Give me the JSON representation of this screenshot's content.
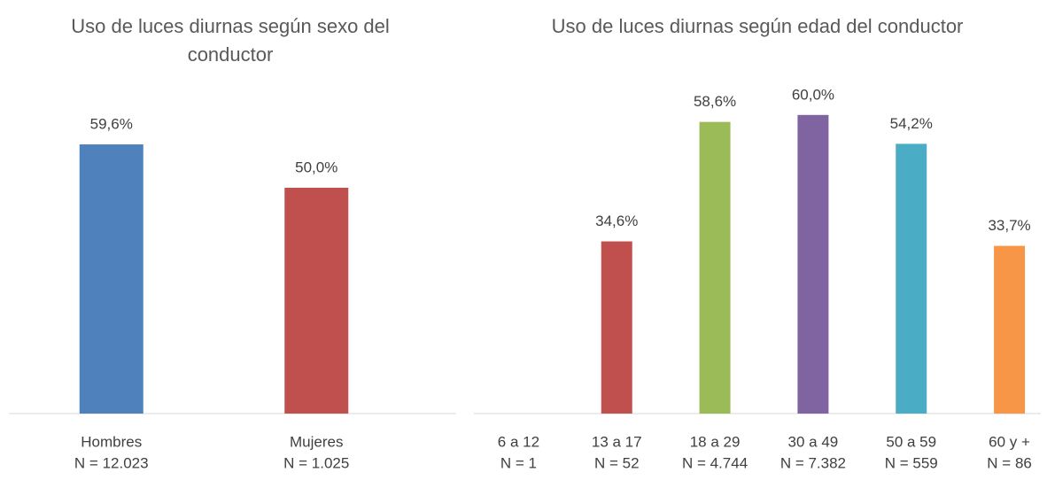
{
  "chart_data": [
    {
      "type": "bar",
      "title": "Uso de luces diurnas según sexo del conductor",
      "categories": [
        "Hombres",
        "Mujeres"
      ],
      "sample_sizes": [
        "N = 12.023",
        "N = 1.025"
      ],
      "values": [
        59.6,
        50.0
      ],
      "value_labels": [
        "59,6%",
        "50,0%"
      ],
      "colors": [
        "#4f81bd",
        "#c0504d"
      ],
      "ylim": [
        0,
        70
      ]
    },
    {
      "type": "bar",
      "title": "Uso de luces diurnas según edad del conductor",
      "categories": [
        "6 a 12",
        "13 a 17",
        "18 a 29",
        "30 a 49",
        "50 a 59",
        "60 y +"
      ],
      "sample_sizes": [
        "N = 1",
        "N = 52",
        "N = 4.744",
        "N = 7.382",
        "N = 559",
        "N = 86"
      ],
      "values": [
        null,
        34.6,
        58.6,
        60.0,
        54.2,
        33.7
      ],
      "value_labels": [
        null,
        "34,6%",
        "58,6%",
        "60,0%",
        "54,2%",
        "33,7%"
      ],
      "colors": [
        "#4f81bd",
        "#c0504d",
        "#9bbb59",
        "#8064a2",
        "#4bacc6",
        "#f79646"
      ],
      "ylim": [
        0,
        70
      ]
    }
  ]
}
